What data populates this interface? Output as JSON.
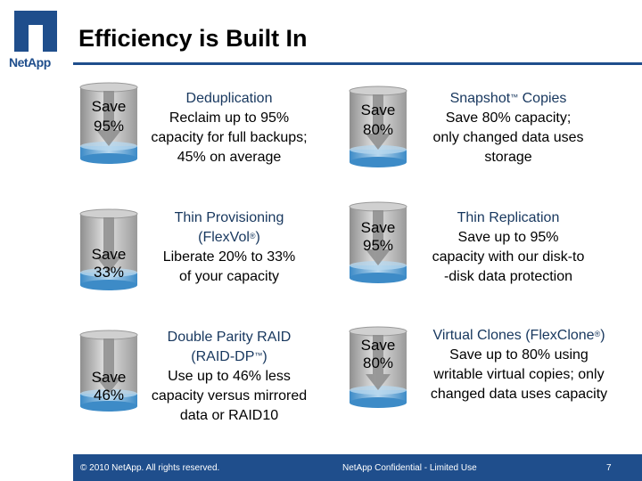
{
  "header": {
    "logo_text": "NetApp",
    "logo_icon": "netapp-n-logo-icon",
    "title": "Efficiency is Built In"
  },
  "colors": {
    "brand_blue": "#1f4e8c",
    "heading_blue": "#17375e",
    "cylinder_top": "#b7d7ee",
    "cylinder_bottom": "#3d8bc7",
    "cylinder_body": "#d9d9d9",
    "arrow": "#8c8c8c"
  },
  "items": [
    {
      "save": [
        "Save",
        "95%"
      ],
      "heading": "Deduplication",
      "lines": [
        "Reclaim up to 95%",
        "capacity for full backups;",
        "45% on average"
      ]
    },
    {
      "save": [
        "Save",
        "80%"
      ],
      "heading_pre": "Snapshot",
      "heading_mark": "™",
      "heading_post": " Copies",
      "lines": [
        "Save 80% capacity;",
        "only changed data uses",
        "storage"
      ]
    },
    {
      "save": [
        "Save",
        "33%"
      ],
      "heading": "Thin Provisioning",
      "heading2_pre": "(FlexVol",
      "heading2_mark": "®",
      "heading2_post": ")",
      "lines": [
        "Liberate 20% to 33%",
        "of your capacity"
      ]
    },
    {
      "save": [
        "Save",
        "95%"
      ],
      "heading": "Thin Replication",
      "lines": [
        "Save up to 95%",
        "capacity with our disk-to",
        "-disk data protection"
      ]
    },
    {
      "save": [
        "Save",
        "46%"
      ],
      "heading": "Double Parity RAID",
      "heading2_pre": "(RAID-DP",
      "heading2_mark": "™",
      "heading2_post": ")",
      "lines": [
        "Use up to 46% less",
        "capacity versus mirrored",
        "data or RAID10"
      ]
    },
    {
      "save": [
        "Save",
        "80%"
      ],
      "heading_pre": "Virtual Clones (FlexClone",
      "heading_mark": "®",
      "heading_post": ")",
      "lines": [
        "Save up to 80% using",
        "writable virtual copies; only",
        "changed data uses capacity"
      ]
    }
  ],
  "footer": {
    "copyright": "© 2010 NetApp.  All rights reserved.",
    "confidential": "NetApp Confidential - Limited Use",
    "page": "7"
  }
}
